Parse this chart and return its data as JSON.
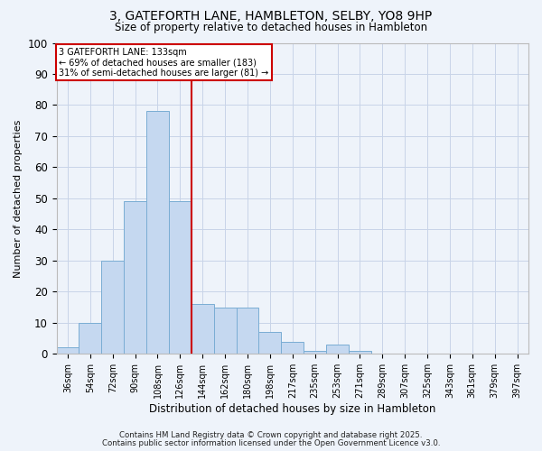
{
  "title1": "3, GATEFORTH LANE, HAMBLETON, SELBY, YO8 9HP",
  "title2": "Size of property relative to detached houses in Hambleton",
  "xlabel": "Distribution of detached houses by size in Hambleton",
  "ylabel": "Number of detached properties",
  "bar_labels": [
    "36sqm",
    "54sqm",
    "72sqm",
    "90sqm",
    "108sqm",
    "126sqm",
    "144sqm",
    "162sqm",
    "180sqm",
    "198sqm",
    "217sqm",
    "235sqm",
    "253sqm",
    "271sqm",
    "289sqm",
    "307sqm",
    "325sqm",
    "343sqm",
    "361sqm",
    "379sqm",
    "397sqm"
  ],
  "bar_values": [
    2,
    10,
    30,
    49,
    78,
    49,
    16,
    15,
    15,
    7,
    4,
    1,
    3,
    1,
    0,
    0,
    0,
    0,
    0,
    0,
    0
  ],
  "bar_color": "#C5D8F0",
  "bar_edgecolor": "#7AADD4",
  "grid_color": "#C8D4E8",
  "background_color": "#EEF3FA",
  "red_line_color": "#CC0000",
  "red_line_x": 5.5,
  "annotation_line1": "3 GATEFORTH LANE: 133sqm",
  "annotation_line2": "← 69% of detached houses are smaller (183)",
  "annotation_line3": "31% of semi-detached houses are larger (81) →",
  "annotation_box_color": "#FFFFFF",
  "annotation_box_edge": "#CC0000",
  "footer1": "Contains HM Land Registry data © Crown copyright and database right 2025.",
  "footer2": "Contains public sector information licensed under the Open Government Licence v3.0.",
  "ylim": [
    0,
    100
  ],
  "yticks": [
    0,
    10,
    20,
    30,
    40,
    50,
    60,
    70,
    80,
    90,
    100
  ]
}
